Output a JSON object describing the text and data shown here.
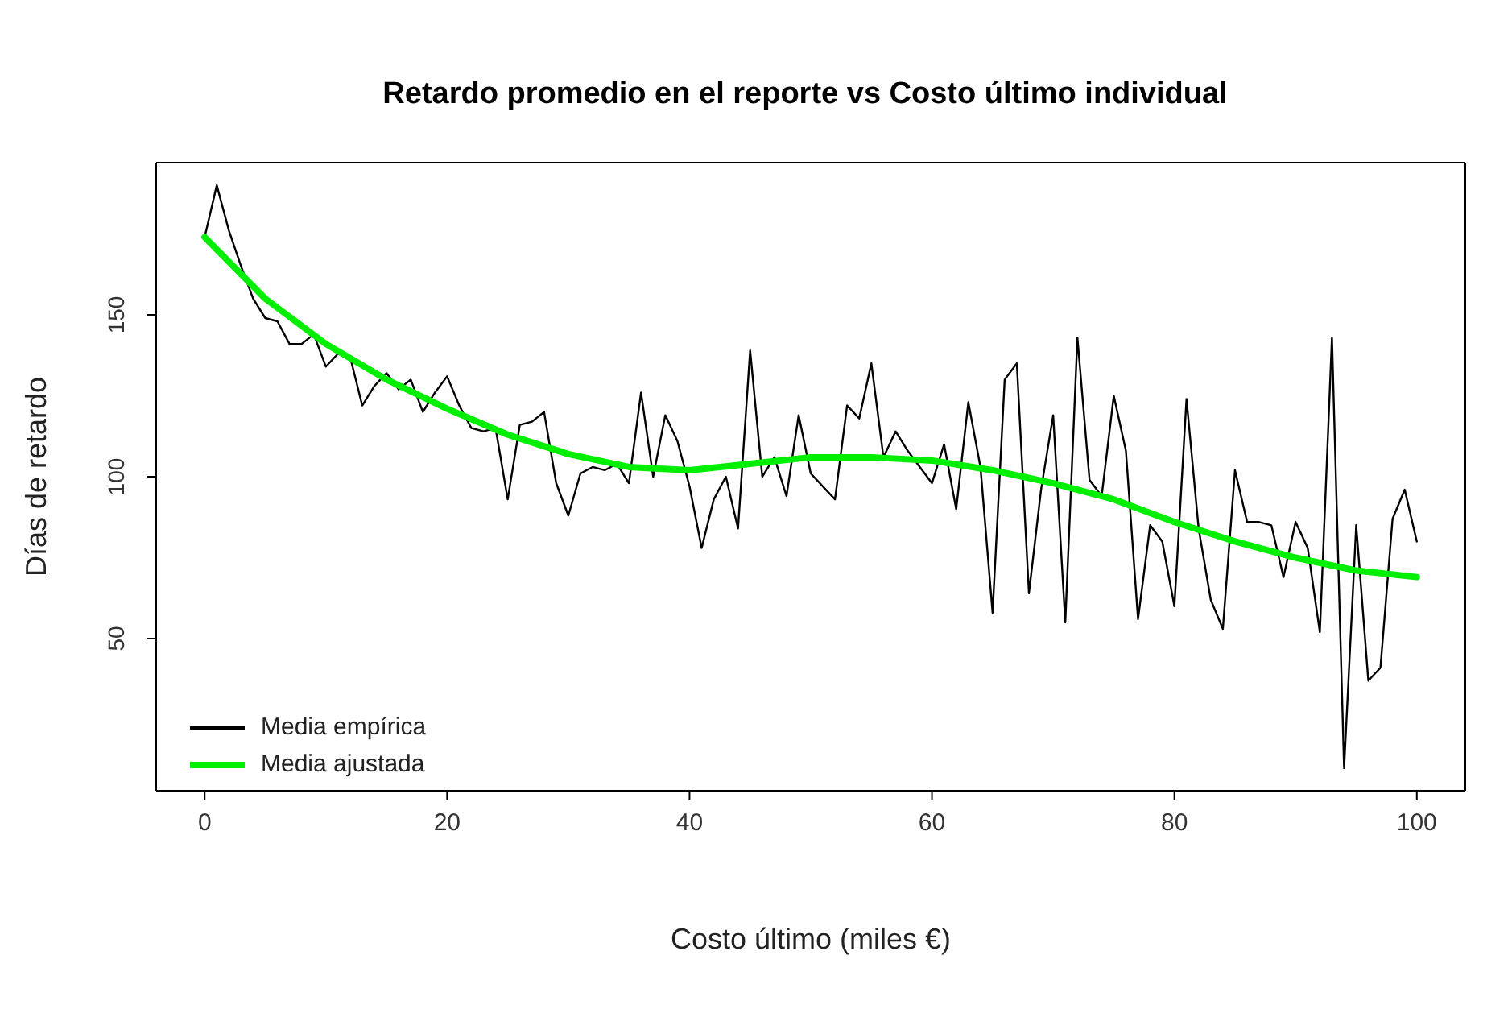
{
  "chart_data": {
    "type": "line",
    "title": "Retardo promedio en el reporte vs Costo último individual",
    "xlabel": "Costo último (miles €)",
    "ylabel": "Días de retardo",
    "xlim": [
      -4,
      104
    ],
    "xticks": [
      0,
      20,
      40,
      60,
      80,
      100
    ],
    "ylim": [
      3,
      197
    ],
    "yticks": [
      50,
      100,
      150
    ],
    "legend": "bottom left",
    "marker": "none",
    "line_style": "solid",
    "series": [
      {
        "name": "Media empírica",
        "color": "#000000",
        "x": [
          0,
          1,
          2,
          3,
          4,
          5,
          6,
          7,
          8,
          9,
          10,
          11,
          12,
          13,
          14,
          15,
          16,
          17,
          18,
          19,
          20,
          21,
          22,
          23,
          24,
          25,
          26,
          27,
          28,
          29,
          30,
          31,
          32,
          33,
          34,
          35,
          36,
          37,
          38,
          39,
          40,
          41,
          42,
          43,
          44,
          45,
          46,
          47,
          48,
          49,
          50,
          51,
          52,
          53,
          54,
          55,
          56,
          57,
          58,
          59,
          60,
          61,
          62,
          63,
          64,
          65,
          66,
          67,
          68,
          69,
          70,
          71,
          72,
          73,
          74,
          75,
          76,
          77,
          78,
          79,
          80,
          81,
          82,
          83,
          84,
          85,
          86,
          87,
          88,
          89,
          90,
          91,
          92,
          93,
          94,
          95,
          96,
          97,
          98,
          99,
          100
        ],
        "values": [
          174,
          190,
          176,
          165,
          155,
          149,
          148,
          141,
          141,
          144,
          134,
          138,
          137,
          122,
          128,
          132,
          127,
          130,
          120,
          126,
          131,
          122,
          115,
          114,
          115,
          93,
          116,
          117,
          120,
          98,
          88,
          101,
          103,
          102,
          104,
          98,
          126,
          100,
          119,
          111,
          97,
          78,
          93,
          100,
          84,
          139,
          100,
          106,
          94,
          119,
          101,
          97,
          93,
          122,
          118,
          135,
          106,
          114,
          108,
          103,
          98,
          110,
          90,
          123,
          103,
          58,
          130,
          135,
          64,
          96,
          119,
          55,
          143,
          99,
          94,
          125,
          108,
          56,
          85,
          80,
          60,
          124,
          84,
          62,
          53,
          102,
          86,
          86,
          85,
          69,
          86,
          78,
          52,
          143,
          10,
          85,
          37,
          41,
          87,
          96,
          80
        ]
      },
      {
        "name": "Media ajustada",
        "color": "#00ee00",
        "x": [
          0,
          5,
          10,
          15,
          20,
          25,
          30,
          35,
          40,
          45,
          50,
          55,
          60,
          65,
          70,
          75,
          80,
          85,
          90,
          95,
          100
        ],
        "values": [
          174,
          155,
          141,
          130,
          121,
          113,
          107,
          103,
          102,
          104,
          106,
          106,
          105,
          102,
          98,
          93,
          86,
          80,
          75,
          71,
          69
        ]
      }
    ]
  }
}
